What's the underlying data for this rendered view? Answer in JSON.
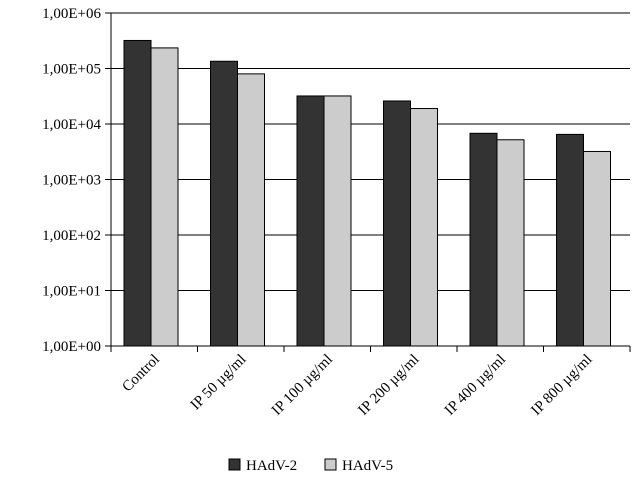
{
  "chart_data": {
    "type": "bar",
    "title": "",
    "xlabel": "",
    "ylabel": "",
    "yscale": "log",
    "ylim": [
      1,
      1000000
    ],
    "grid": true,
    "legend_position": "bottom",
    "y_ticks": [
      {
        "value": 1,
        "label": "1,00E+00"
      },
      {
        "value": 10,
        "label": "1,00E+01"
      },
      {
        "value": 100,
        "label": "1,00E+02"
      },
      {
        "value": 1000,
        "label": "1,00E+03"
      },
      {
        "value": 10000,
        "label": "1,00E+04"
      },
      {
        "value": 100000,
        "label": "1,00E+05"
      },
      {
        "value": 1000000,
        "label": "1,00E+06"
      }
    ],
    "categories": [
      "Control",
      "IP 50 µg/ml",
      "IP 100 µg/ml",
      "IP 200 µg/ml",
      "IP 400 µg/ml",
      "IP 800 µg/ml"
    ],
    "series": [
      {
        "name": "HAdV-2",
        "color": "#333333",
        "values": [
          320000,
          135000,
          32000,
          26000,
          6800,
          6500
        ]
      },
      {
        "name": "HAdV-5",
        "color": "#cccccc",
        "values": [
          235000,
          80000,
          32000,
          19000,
          5200,
          3200
        ]
      }
    ]
  }
}
